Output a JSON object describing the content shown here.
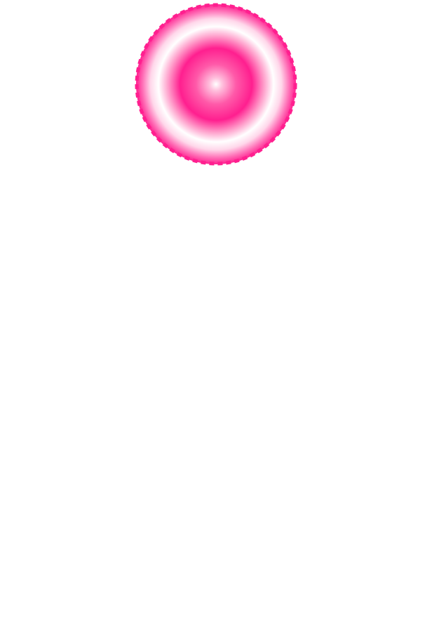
{
  "graphic": {
    "icon": "radial-badge-icon",
    "shape": "circle",
    "edge": "dashed",
    "colors": {
      "accent": "#ff1f8f",
      "mid": "#ff69b4",
      "light": "#ffd6ea",
      "white": "#ffffff",
      "background": "#ffffff"
    }
  }
}
